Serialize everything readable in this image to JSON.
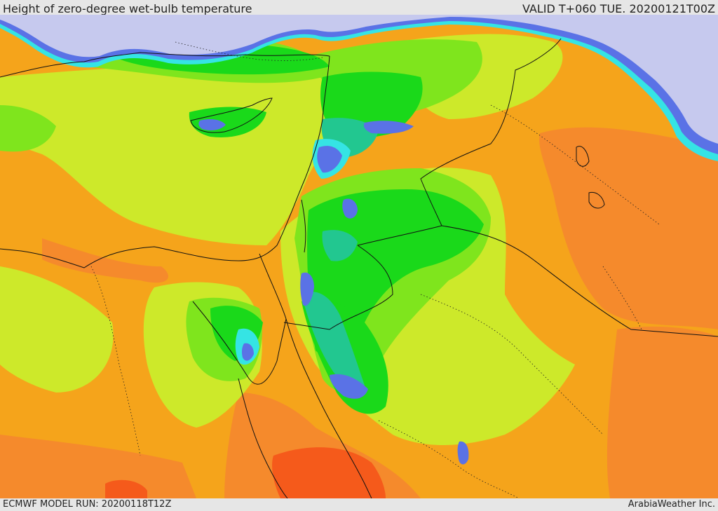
{
  "header": {
    "title": "Height of zero-degree wet-bulb temperature",
    "valid": "VALID T+060 TUE. 20200121T00Z"
  },
  "footer": {
    "model_run": "ECMWF MODEL RUN: 20200118T12Z",
    "credit": "ArabiaWeather Inc."
  },
  "palette": {
    "sea_lavender": "#c6c9ee",
    "blue": "#5a72e6",
    "cyan": "#35e4e4",
    "teal": "#22c790",
    "green": "#1ad91a",
    "light_green": "#7fe51d",
    "yellow_green": "#cde92a",
    "orange_yellow": "#f5a41b",
    "orange": "#f58a2c",
    "red_orange": "#f55a1b"
  }
}
